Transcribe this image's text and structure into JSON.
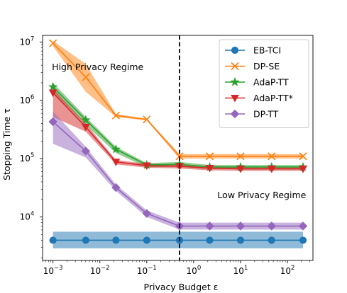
{
  "chart_data": {
    "type": "line",
    "title": "",
    "xlabel": "Privacy Budget ε",
    "ylabel": "Stopping Time τ",
    "x_scale": "log",
    "y_scale": "log",
    "xlim": [
      0.0006,
      350
    ],
    "ylim": [
      1800,
      13000000
    ],
    "grid": false,
    "legend_position": "top-right",
    "x": [
      0.001,
      0.005,
      0.022,
      0.1,
      0.5,
      2.2,
      10,
      46,
      215
    ],
    "x_ticks": [
      {
        "value": 0.001,
        "base": "10",
        "exp": "−3"
      },
      {
        "value": 0.01,
        "base": "10",
        "exp": "−2"
      },
      {
        "value": 0.1,
        "base": "10",
        "exp": "−1"
      },
      {
        "value": 1,
        "base": "10",
        "exp": "0"
      },
      {
        "value": 10,
        "base": "10",
        "exp": "1"
      },
      {
        "value": 100,
        "base": "10",
        "exp": "2"
      }
    ],
    "y_ticks": [
      {
        "value": 10000,
        "base": "10",
        "exp": "4"
      },
      {
        "value": 100000,
        "base": "10",
        "exp": "5"
      },
      {
        "value": 1000000,
        "base": "10",
        "exp": "6"
      },
      {
        "value": 10000000,
        "base": "10",
        "exp": "7"
      }
    ],
    "vline": 0.5,
    "annotations": [
      {
        "text": "High Privacy Regime",
        "x": 0.00095,
        "y": 3300000,
        "anchor": "start"
      },
      {
        "text": "Low Privacy Regime",
        "x": 250,
        "y": 21000,
        "anchor": "end"
      }
    ],
    "series": [
      {
        "name": "EB-TCI",
        "color": "#1f77b4",
        "marker": "circle",
        "values": [
          4000,
          4000,
          4000,
          4000,
          4000,
          4000,
          4000,
          4000,
          4000
        ],
        "lower": [
          2900,
          2900,
          2900,
          2900,
          2900,
          2900,
          2900,
          2900,
          2900
        ],
        "upper": [
          5600,
          5600,
          5600,
          5600,
          5600,
          5600,
          5600,
          5600,
          5600
        ]
      },
      {
        "name": "DP-SE",
        "color": "#ff7f0e",
        "marker": "x",
        "values": [
          9500000,
          2500000,
          550000,
          470000,
          110000,
          110000,
          110000,
          110000,
          110000
        ],
        "lower": [
          8500000,
          1400000,
          520000,
          450000,
          100000,
          101000,
          101000,
          101000,
          101000
        ],
        "upper": [
          10500000,
          4200000,
          580000,
          490000,
          120000,
          120000,
          120000,
          120000,
          119000
        ]
      },
      {
        "name": "AdaP-TT",
        "color": "#2ca02c",
        "marker": "star",
        "values": [
          1700000,
          460000,
          145000,
          78000,
          80000,
          72000,
          72000,
          72000,
          72000
        ],
        "lower": [
          1400000,
          380000,
          125000,
          71000,
          73000,
          66000,
          66000,
          66000,
          66000
        ],
        "upper": [
          2000000,
          520000,
          160000,
          84000,
          88000,
          78000,
          78000,
          78000,
          78000
        ]
      },
      {
        "name": "AdaP-TT*",
        "color": "#d62728",
        "marker": "triangle-down",
        "values": [
          1350000,
          350000,
          88000,
          76000,
          74000,
          69000,
          67000,
          67000,
          67000
        ],
        "lower": [
          520000,
          290000,
          80000,
          70000,
          68000,
          63000,
          62000,
          62000,
          62000
        ],
        "upper": [
          1600000,
          400000,
          95000,
          82000,
          80000,
          75000,
          73000,
          73000,
          73000
        ]
      },
      {
        "name": "DP-TT",
        "color": "#9467bd",
        "marker": "diamond",
        "values": [
          430000,
          135000,
          32000,
          11500,
          7000,
          7000,
          7000,
          7000,
          7000
        ],
        "lower": [
          180000,
          105000,
          28000,
          10000,
          6100,
          6100,
          6100,
          6100,
          6100
        ],
        "upper": [
          650000,
          160000,
          36000,
          13000,
          8000,
          8000,
          8000,
          8000,
          8000
        ]
      }
    ]
  }
}
